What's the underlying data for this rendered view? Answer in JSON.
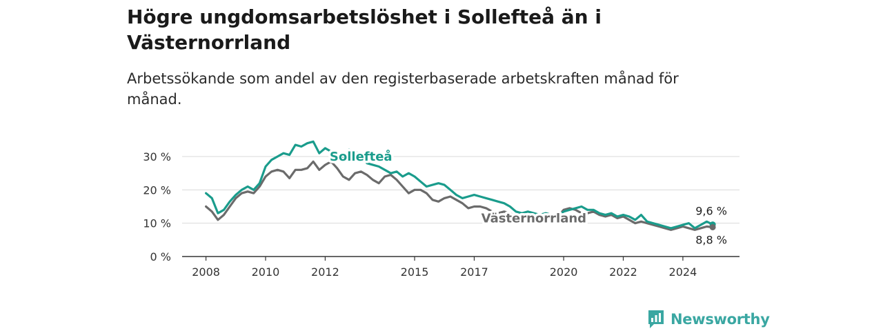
{
  "header": {
    "title": "Högre ungdomsarbetslöshet i Sollefteå än i Västernorrland",
    "subtitle": "Arbetssökande som andel av den registerbaserade arbetskraften månad för månad."
  },
  "brand": {
    "name": "Newsworthy",
    "icon": "newsworthy-logo-icon",
    "color": "#3aa7a2"
  },
  "chart_data": {
    "type": "line",
    "title": "Högre ungdomsarbetslöshet i Sollefteå än i Västernorrland",
    "subtitle": "Arbetssökande som andel av den registerbaserade arbetskraften månad för månad.",
    "xlabel": "",
    "ylabel": "",
    "x_range": [
      2007.2,
      2025.9
    ],
    "ylim": [
      0,
      30
    ],
    "y_ticks": [
      0,
      10,
      20,
      30
    ],
    "y_tick_labels": [
      "0 %",
      "10 %",
      "20 %",
      "30 %"
    ],
    "x_ticks": [
      2008,
      2010,
      2012,
      2015,
      2017,
      2020,
      2022,
      2024
    ],
    "x_tick_labels": [
      "2008",
      "2010",
      "2012",
      "2015",
      "2017",
      "2020",
      "2022",
      "2024"
    ],
    "grid": "horizontal",
    "legend": "inline labels",
    "series": [
      {
        "name": "Sollefteå",
        "color": "#1a9c8c",
        "end_label": "9,6 %",
        "points": [
          [
            2008.0,
            19.0
          ],
          [
            2008.2,
            17.5
          ],
          [
            2008.4,
            13.0
          ],
          [
            2008.6,
            14.0
          ],
          [
            2008.8,
            16.5
          ],
          [
            2009.0,
            18.5
          ],
          [
            2009.2,
            20.0
          ],
          [
            2009.4,
            21.0
          ],
          [
            2009.6,
            20.0
          ],
          [
            2009.8,
            22.0
          ],
          [
            2010.0,
            27.0
          ],
          [
            2010.2,
            29.0
          ],
          [
            2010.4,
            30.0
          ],
          [
            2010.6,
            31.0
          ],
          [
            2010.8,
            30.5
          ],
          [
            2011.0,
            33.5
          ],
          [
            2011.2,
            33.0
          ],
          [
            2011.4,
            34.0
          ],
          [
            2011.6,
            34.5
          ],
          [
            2011.8,
            31.0
          ],
          [
            2012.0,
            32.5
          ],
          [
            2012.2,
            31.5
          ],
          [
            2012.4,
            30.0
          ],
          [
            2012.6,
            29.5
          ],
          [
            2012.8,
            32.0
          ],
          [
            2013.0,
            31.5
          ],
          [
            2013.2,
            30.5
          ],
          [
            2013.4,
            28.0
          ],
          [
            2013.6,
            27.5
          ],
          [
            2013.8,
            27.0
          ],
          [
            2014.0,
            26.0
          ],
          [
            2014.2,
            25.0
          ],
          [
            2014.4,
            25.5
          ],
          [
            2014.6,
            24.0
          ],
          [
            2014.8,
            25.0
          ],
          [
            2015.0,
            24.0
          ],
          [
            2015.2,
            22.5
          ],
          [
            2015.4,
            21.0
          ],
          [
            2015.6,
            21.5
          ],
          [
            2015.8,
            22.0
          ],
          [
            2016.0,
            21.5
          ],
          [
            2016.2,
            20.0
          ],
          [
            2016.4,
            18.5
          ],
          [
            2016.6,
            17.5
          ],
          [
            2016.8,
            18.0
          ],
          [
            2017.0,
            18.5
          ],
          [
            2017.2,
            18.0
          ],
          [
            2017.4,
            17.5
          ],
          [
            2017.6,
            17.0
          ],
          [
            2017.8,
            16.5
          ],
          [
            2018.0,
            16.0
          ],
          [
            2018.2,
            15.0
          ],
          [
            2018.4,
            13.5
          ],
          [
            2018.6,
            13.0
          ],
          [
            2018.8,
            13.5
          ],
          [
            2019.0,
            13.0
          ],
          [
            2019.2,
            12.5
          ],
          [
            2019.4,
            13.0
          ],
          [
            2019.6,
            12.5
          ],
          [
            2019.8,
            12.0
          ],
          [
            2020.0,
            13.5
          ],
          [
            2020.2,
            14.0
          ],
          [
            2020.4,
            14.5
          ],
          [
            2020.6,
            15.0
          ],
          [
            2020.8,
            14.0
          ],
          [
            2021.0,
            14.0
          ],
          [
            2021.2,
            13.0
          ],
          [
            2021.4,
            12.5
          ],
          [
            2021.6,
            13.0
          ],
          [
            2021.8,
            12.0
          ],
          [
            2022.0,
            12.5
          ],
          [
            2022.2,
            12.0
          ],
          [
            2022.4,
            11.0
          ],
          [
            2022.6,
            12.5
          ],
          [
            2022.8,
            10.5
          ],
          [
            2023.0,
            10.0
          ],
          [
            2023.2,
            9.5
          ],
          [
            2023.4,
            9.0
          ],
          [
            2023.6,
            8.5
          ],
          [
            2023.8,
            9.0
          ],
          [
            2024.0,
            9.5
          ],
          [
            2024.2,
            10.0
          ],
          [
            2024.4,
            8.5
          ],
          [
            2024.6,
            9.5
          ],
          [
            2024.8,
            10.5
          ],
          [
            2025.0,
            9.6
          ]
        ]
      },
      {
        "name": "Västernorrland",
        "color": "#6b6b6b",
        "end_label": "8,8 %",
        "points": [
          [
            2008.0,
            15.0
          ],
          [
            2008.2,
            13.5
          ],
          [
            2008.4,
            11.0
          ],
          [
            2008.6,
            12.5
          ],
          [
            2008.8,
            15.0
          ],
          [
            2009.0,
            17.5
          ],
          [
            2009.2,
            19.0
          ],
          [
            2009.4,
            19.5
          ],
          [
            2009.6,
            19.0
          ],
          [
            2009.8,
            21.0
          ],
          [
            2010.0,
            24.0
          ],
          [
            2010.2,
            25.5
          ],
          [
            2010.4,
            26.0
          ],
          [
            2010.6,
            25.5
          ],
          [
            2010.8,
            23.5
          ],
          [
            2011.0,
            26.0
          ],
          [
            2011.2,
            26.0
          ],
          [
            2011.4,
            26.5
          ],
          [
            2011.6,
            28.5
          ],
          [
            2011.8,
            26.0
          ],
          [
            2012.0,
            27.5
          ],
          [
            2012.2,
            28.5
          ],
          [
            2012.4,
            26.5
          ],
          [
            2012.6,
            24.0
          ],
          [
            2012.8,
            23.0
          ],
          [
            2013.0,
            25.0
          ],
          [
            2013.2,
            25.5
          ],
          [
            2013.4,
            24.5
          ],
          [
            2013.6,
            23.0
          ],
          [
            2013.8,
            22.0
          ],
          [
            2014.0,
            24.0
          ],
          [
            2014.2,
            24.5
          ],
          [
            2014.4,
            23.0
          ],
          [
            2014.6,
            21.0
          ],
          [
            2014.8,
            19.0
          ],
          [
            2015.0,
            20.0
          ],
          [
            2015.2,
            20.0
          ],
          [
            2015.4,
            19.0
          ],
          [
            2015.6,
            17.0
          ],
          [
            2015.8,
            16.5
          ],
          [
            2016.0,
            17.5
          ],
          [
            2016.2,
            18.0
          ],
          [
            2016.4,
            17.0
          ],
          [
            2016.6,
            16.0
          ],
          [
            2016.8,
            14.5
          ],
          [
            2017.0,
            15.0
          ],
          [
            2017.2,
            15.0
          ],
          [
            2017.4,
            14.5
          ],
          [
            2017.6,
            13.5
          ],
          [
            2017.8,
            13.0
          ],
          [
            2018.0,
            13.5
          ],
          [
            2018.2,
            13.0
          ],
          [
            2018.4,
            12.0
          ],
          [
            2018.6,
            11.5
          ],
          [
            2018.8,
            12.5
          ],
          [
            2019.0,
            12.5
          ],
          [
            2019.2,
            12.0
          ],
          [
            2019.4,
            12.0
          ],
          [
            2019.6,
            11.5
          ],
          [
            2019.8,
            12.0
          ],
          [
            2020.0,
            14.0
          ],
          [
            2020.2,
            14.5
          ],
          [
            2020.4,
            14.0
          ],
          [
            2020.6,
            13.0
          ],
          [
            2020.8,
            13.0
          ],
          [
            2021.0,
            13.5
          ],
          [
            2021.2,
            12.5
          ],
          [
            2021.4,
            12.0
          ],
          [
            2021.6,
            12.5
          ],
          [
            2021.8,
            11.5
          ],
          [
            2022.0,
            12.0
          ],
          [
            2022.2,
            11.0
          ],
          [
            2022.4,
            10.0
          ],
          [
            2022.6,
            10.5
          ],
          [
            2022.8,
            10.0
          ],
          [
            2023.0,
            9.5
          ],
          [
            2023.2,
            9.0
          ],
          [
            2023.4,
            8.5
          ],
          [
            2023.6,
            8.0
          ],
          [
            2023.8,
            8.5
          ],
          [
            2024.0,
            9.0
          ],
          [
            2024.2,
            8.5
          ],
          [
            2024.4,
            8.0
          ],
          [
            2024.6,
            8.5
          ],
          [
            2024.8,
            9.0
          ],
          [
            2025.0,
            8.8
          ]
        ]
      }
    ],
    "inline_labels": [
      {
        "series": 0,
        "text": "Sollefteå",
        "x": 2013.2,
        "y": 30.0
      },
      {
        "series": 1,
        "text": "Västernorrland",
        "x": 2019.0,
        "y": 11.5
      }
    ]
  }
}
